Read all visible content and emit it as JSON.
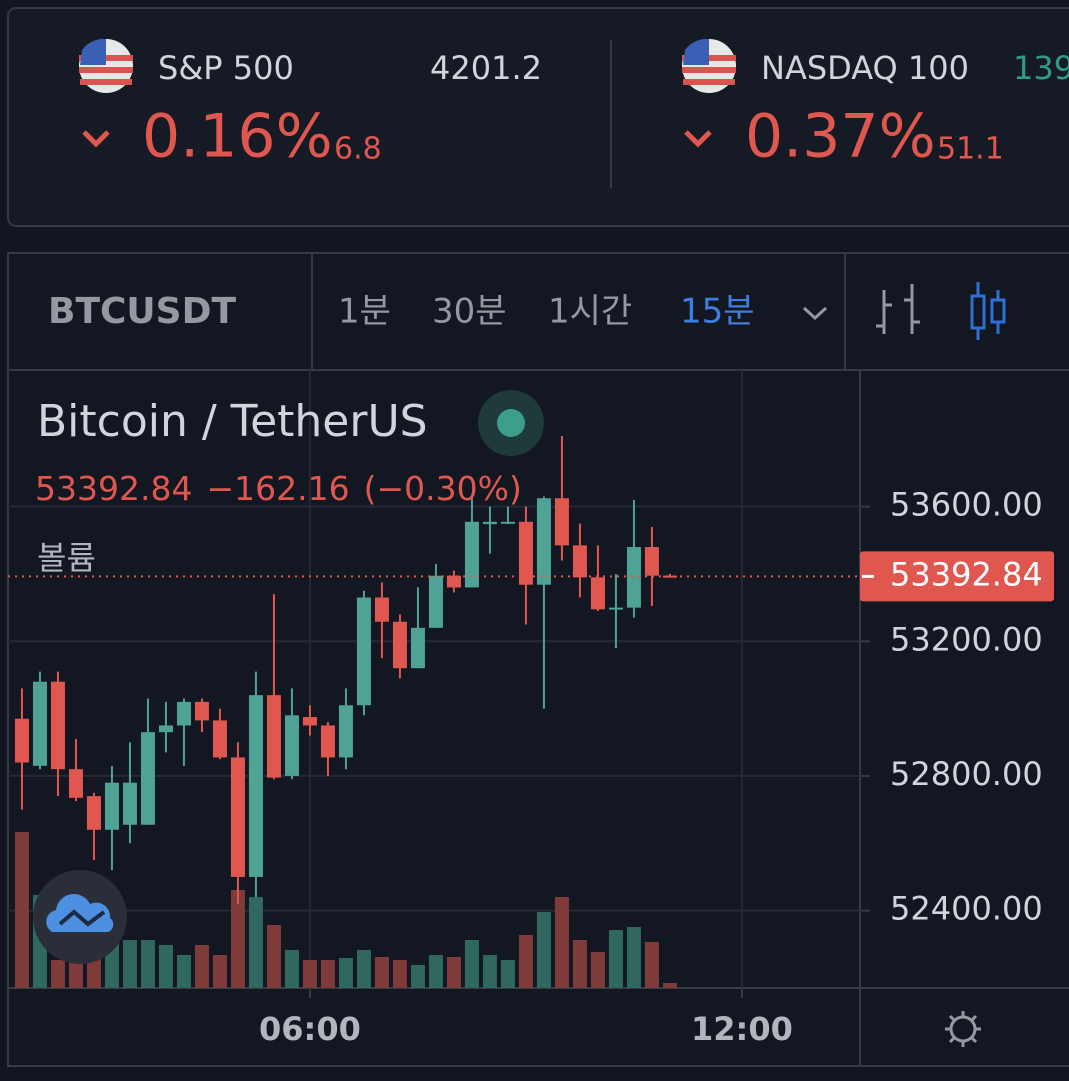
{
  "tickers": [
    {
      "name": "S&P 500",
      "price": "4201.2",
      "change_pct": "0.16%",
      "change": "6.8"
    },
    {
      "name": "NASDAQ 100",
      "price": "139",
      "change_pct": "0.37%",
      "change": "51.1"
    }
  ],
  "toolbar": {
    "symbol": "BTCUSDT",
    "intervals": [
      "1분",
      "30분",
      "1시간",
      "15분"
    ],
    "active_interval": 3
  },
  "chart_data": {
    "type": "candlestick",
    "title": "Bitcoin / TetherUS",
    "legend": {
      "change": "−162.16",
      "change_pct": "(−0.30%)",
      "volume_label": "볼륨"
    },
    "last_price": 53392.84,
    "up_color": "#4ea396",
    "down_color": "#e0574f",
    "volume_up_color": "#30685f",
    "volume_down_color": "#7e3b3a",
    "x": [
      2,
      2.25,
      2.5,
      2.75,
      3,
      3.25,
      3.5,
      3.75,
      4,
      4.25,
      4.5,
      4.75,
      5,
      5.25,
      5.5,
      5.75,
      6,
      6.25,
      6.5,
      6.75,
      7,
      7.25,
      7.5,
      7.75,
      8,
      8.25,
      8.5,
      8.75,
      9,
      9.25,
      9.5,
      9.75,
      10,
      10.25,
      10.5,
      10.75,
      11
    ],
    "open": [
      52970,
      52830,
      53080,
      52820,
      52740,
      52640,
      52655,
      52655,
      52930,
      52950,
      53020,
      52965,
      52855,
      52500,
      53040,
      52800,
      52975,
      52950,
      52855,
      53010,
      53330,
      53258,
      53120,
      53240,
      53395,
      53360,
      53548,
      53550,
      53555,
      53368,
      53625,
      53485,
      53390,
      53295,
      53300,
      53480,
      53395
    ],
    "high": [
      53060,
      53110,
      53110,
      52910,
      52750,
      52830,
      52900,
      53030,
      53020,
      53030,
      53030,
      53000,
      52900,
      53110,
      53340,
      53060,
      53010,
      52960,
      53060,
      53350,
      53375,
      53280,
      53360,
      53430,
      53410,
      53630,
      53600,
      53600,
      53600,
      53630,
      53810,
      53550,
      53485,
      53400,
      53620,
      53540,
      53400
    ],
    "low": [
      52700,
      52820,
      52740,
      52725,
      52550,
      52520,
      52600,
      52655,
      52870,
      52830,
      52930,
      52850,
      52420,
      52440,
      52790,
      52790,
      52920,
      52800,
      52820,
      52980,
      53150,
      53090,
      53120,
      53240,
      53345,
      53360,
      53460,
      53548,
      53250,
      53000,
      53440,
      53330,
      53290,
      53180,
      53270,
      53305,
      53390
    ],
    "close": [
      52840,
      53080,
      52820,
      52735,
      52640,
      52780,
      52780,
      52930,
      52950,
      53020,
      52965,
      52855,
      52500,
      53040,
      52795,
      52980,
      52950,
      52855,
      53010,
      53330,
      53258,
      53120,
      53240,
      53395,
      53360,
      53555,
      53555,
      53555,
      53368,
      53625,
      53485,
      53390,
      53295,
      53300,
      53480,
      53395,
      53392.84
    ],
    "volume": [
      156,
      93,
      28,
      28,
      48,
      58,
      48,
      48,
      43,
      33,
      43,
      33,
      98,
      91,
      63,
      38,
      28,
      28,
      30,
      38,
      31,
      28,
      23,
      33,
      31,
      48,
      33,
      28,
      53,
      76,
      91,
      48,
      36,
      58,
      61,
      46,
      5
    ],
    "xlim": [
      1.806,
      13.64
    ],
    "ylim": [
      52170,
      54000
    ],
    "xticks": [
      {
        "value": 6,
        "label": "06:00"
      },
      {
        "value": 12,
        "label": "12:00"
      }
    ],
    "yticks": [
      {
        "value": 52400,
        "label": "52400.00"
      },
      {
        "value": 52800,
        "label": "52800.00"
      },
      {
        "value": 53200,
        "label": "53200.00"
      },
      {
        "value": 53600,
        "label": "53600.00"
      }
    ],
    "grid": true
  }
}
